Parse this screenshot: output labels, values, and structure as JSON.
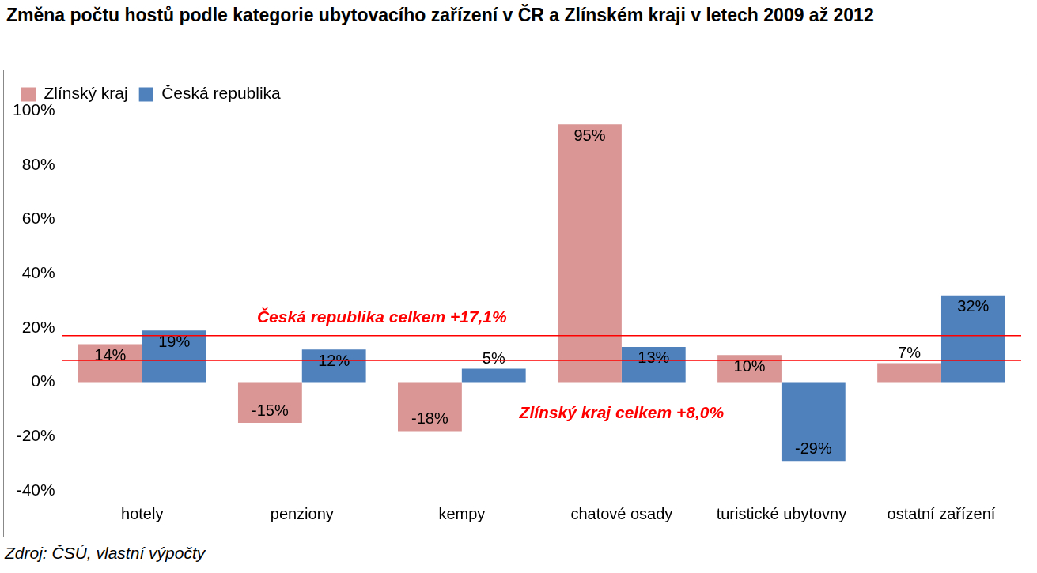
{
  "chart_data": {
    "type": "bar",
    "title": "Změna počtu hostů podle kategorie ubytovacího zařízení v ČR a Zlínském kraji v letech 2009 až 2012",
    "categories": [
      "hotely",
      "penziony",
      "kempy",
      "chatové osady",
      "turistické ubytovny",
      "ostatní zařízení"
    ],
    "series": [
      {
        "name": "Zlínský kraj",
        "color": "#D99694",
        "values": [
          14,
          -15,
          -18,
          95,
          10,
          7
        ],
        "value_labels": [
          "14%",
          "-15%",
          "-18%",
          "95%",
          "10%",
          "7%"
        ]
      },
      {
        "name": "Česká republika",
        "color": "#4F81BD",
        "values": [
          19,
          12,
          5,
          13,
          -29,
          32
        ],
        "value_labels": [
          "19%",
          "12%",
          "5%",
          "13%",
          "-29%",
          "32%"
        ]
      }
    ],
    "ylim": [
      -40,
      100
    ],
    "yticks": [
      {
        "value": -40,
        "label": "-40%"
      },
      {
        "value": -20,
        "label": "-20%"
      },
      {
        "value": 0,
        "label": "0%"
      },
      {
        "value": 20,
        "label": "20%"
      },
      {
        "value": 40,
        "label": "40%"
      },
      {
        "value": 60,
        "label": "60%"
      },
      {
        "value": 80,
        "label": "80%"
      },
      {
        "value": 100,
        "label": "100%"
      }
    ],
    "grid": false,
    "legend": "top-left",
    "data_labels": true,
    "annotations": [
      {
        "text": "Česká republika celkem +17,1%",
        "value": 17.1
      },
      {
        "text": "Zlínský kraj celkem +8,0%",
        "value": 8.0
      }
    ],
    "source": "Zdroj: ČSÚ, vlastní výpočty"
  }
}
